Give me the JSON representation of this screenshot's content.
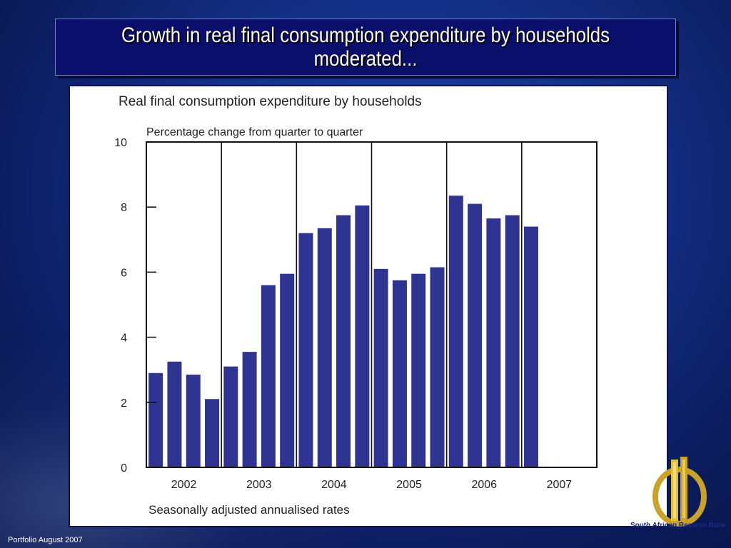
{
  "slide": {
    "title": "Growth in real final consumption expenditure by households moderated...",
    "footer": "Portfolio August 2007",
    "logo_text": "South African Reserve Bank"
  },
  "chart_data": {
    "type": "bar",
    "title": "Real final consumption expenditure by households",
    "subtitle": "Percentage change from quarter to quarter",
    "footnote": "Seasonally adjusted annualised rates",
    "ylim": [
      0,
      10
    ],
    "yticks": [
      0,
      2,
      4,
      6,
      8,
      10
    ],
    "years": [
      "2002",
      "2003",
      "2004",
      "2005",
      "2006",
      "2007"
    ],
    "categories": [
      "2002Q1",
      "2002Q2",
      "2002Q3",
      "2002Q4",
      "2003Q1",
      "2003Q2",
      "2003Q3",
      "2003Q4",
      "2004Q1",
      "2004Q2",
      "2004Q3",
      "2004Q4",
      "2005Q1",
      "2005Q2",
      "2005Q3",
      "2005Q4",
      "2006Q1",
      "2006Q2",
      "2006Q3",
      "2006Q4",
      "2007Q1"
    ],
    "values": [
      2.9,
      3.25,
      2.85,
      2.1,
      3.1,
      3.55,
      5.6,
      5.95,
      7.2,
      7.35,
      7.75,
      8.05,
      6.1,
      5.75,
      5.95,
      6.15,
      8.35,
      8.1,
      7.65,
      7.75,
      7.4
    ],
    "bar_color": "#2f3391",
    "grid": false,
    "legend": "none"
  }
}
